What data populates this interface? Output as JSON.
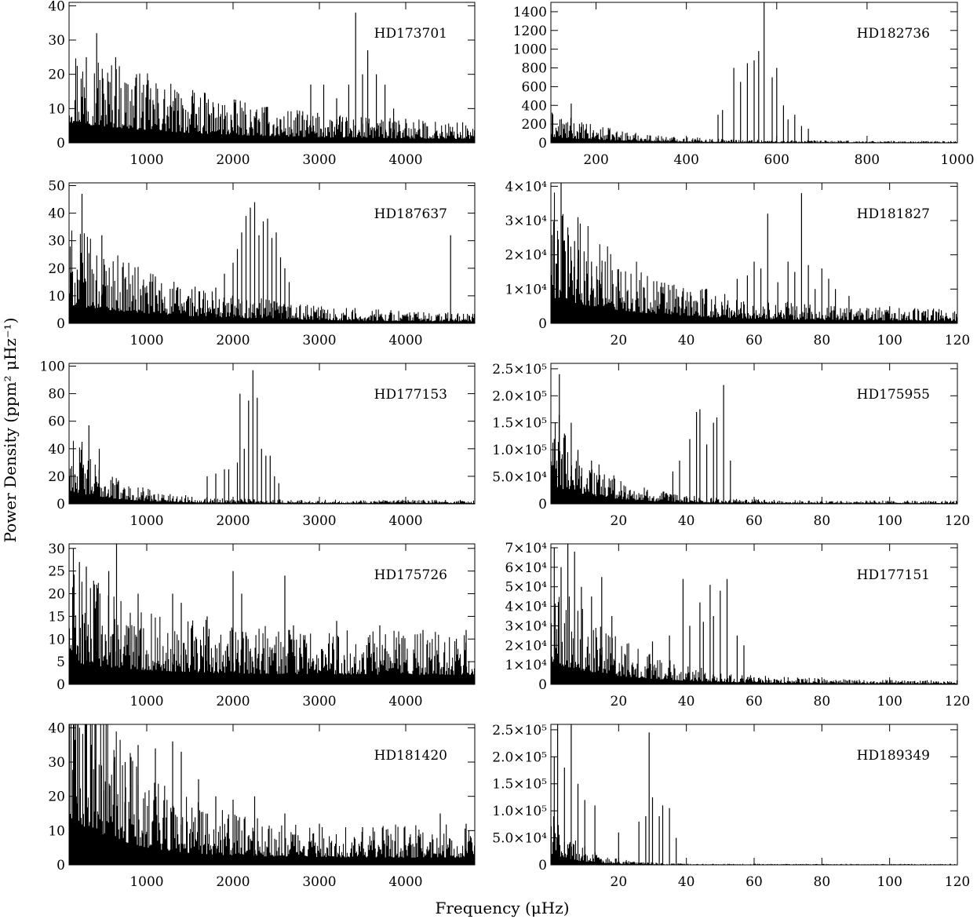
{
  "figure": {
    "ylabel": "Power Density (ppm² μHz⁻¹)",
    "xlabel": "Frequency (μHz)"
  },
  "chart_data": [
    {
      "type": "line",
      "title": "HD173701",
      "xlim": [
        100,
        4800
      ],
      "ylim": [
        0,
        41
      ],
      "xticks": [
        "1000",
        "2000",
        "3000",
        "4000"
      ],
      "yticks": [
        "0",
        "10",
        "20",
        "30",
        "40"
      ],
      "background": {
        "start": 17,
        "end": 2.5,
        "decay": 1500
      },
      "peaks": [
        [
          300,
          25
        ],
        [
          420,
          32
        ],
        [
          640,
          25
        ],
        [
          1400,
          13
        ],
        [
          2800,
          8
        ],
        [
          2900,
          17
        ],
        [
          3050,
          17
        ],
        [
          3200,
          13
        ],
        [
          3340,
          17
        ],
        [
          3420,
          38
        ],
        [
          3500,
          20
        ],
        [
          3560,
          27
        ],
        [
          3660,
          20
        ],
        [
          3760,
          17
        ],
        [
          3860,
          10
        ],
        [
          4000,
          7
        ]
      ]
    },
    {
      "type": "line",
      "title": "HD182736",
      "xlim": [
        100,
        1000
      ],
      "ylim": [
        0,
        1500
      ],
      "xticks": [
        "200",
        "400",
        "600",
        "800",
        "1000"
      ],
      "yticks": [
        "0",
        "200",
        "400",
        "600",
        "800",
        "1000",
        "1200",
        "1400"
      ],
      "background": {
        "start": 180,
        "end": 10,
        "decay": 150
      },
      "peaks": [
        [
          145,
          420
        ],
        [
          470,
          300
        ],
        [
          480,
          350
        ],
        [
          505,
          800
        ],
        [
          520,
          650
        ],
        [
          535,
          850
        ],
        [
          550,
          880
        ],
        [
          560,
          980
        ],
        [
          572,
          1500
        ],
        [
          590,
          700
        ],
        [
          600,
          800
        ],
        [
          615,
          400
        ],
        [
          625,
          250
        ],
        [
          640,
          300
        ],
        [
          655,
          180
        ],
        [
          670,
          150
        ]
      ]
    },
    {
      "type": "line",
      "title": "HD187637",
      "xlim": [
        100,
        4800
      ],
      "ylim": [
        0,
        51
      ],
      "xticks": [
        "1000",
        "2000",
        "3000",
        "4000"
      ],
      "yticks": [
        "0",
        "10",
        "20",
        "30",
        "40",
        "50"
      ],
      "background": {
        "start": 19,
        "end": 1.5,
        "decay": 1300
      },
      "peaks": [
        [
          250,
          47
        ],
        [
          480,
          32
        ],
        [
          1100,
          17
        ],
        [
          1800,
          13
        ],
        [
          1900,
          18
        ],
        [
          2000,
          22
        ],
        [
          2050,
          27
        ],
        [
          2100,
          33
        ],
        [
          2150,
          39
        ],
        [
          2200,
          42
        ],
        [
          2250,
          44
        ],
        [
          2300,
          32
        ],
        [
          2350,
          37
        ],
        [
          2400,
          38
        ],
        [
          2450,
          31
        ],
        [
          2500,
          33
        ],
        [
          2550,
          24
        ],
        [
          2600,
          20
        ],
        [
          2650,
          15
        ],
        [
          4520,
          32
        ]
      ]
    },
    {
      "type": "line",
      "title": "HD181827",
      "xlim": [
        0,
        120
      ],
      "ylim": [
        0,
        41000
      ],
      "xticks": [
        "20",
        "40",
        "60",
        "80",
        "100",
        "120"
      ],
      "yticks": [
        "0",
        "1×10⁴",
        "2×10⁴",
        "3×10⁴",
        "4×10⁴"
      ],
      "background": {
        "start": 22000,
        "end": 2000,
        "decay": 25
      },
      "peaks": [
        [
          1,
          25000
        ],
        [
          3,
          42000
        ],
        [
          5,
          28000
        ],
        [
          7,
          24000
        ],
        [
          8,
          31000
        ],
        [
          12,
          18000
        ],
        [
          15,
          15000
        ],
        [
          20,
          12000
        ],
        [
          55,
          13000
        ],
        [
          58,
          14000
        ],
        [
          60,
          18000
        ],
        [
          62,
          16000
        ],
        [
          64,
          32000
        ],
        [
          67,
          12000
        ],
        [
          70,
          18000
        ],
        [
          72,
          15000
        ],
        [
          74,
          38000
        ],
        [
          76,
          17000
        ],
        [
          78,
          10000
        ],
        [
          80,
          16000
        ],
        [
          82,
          13000
        ],
        [
          84,
          10000
        ],
        [
          88,
          8000
        ],
        [
          100,
          5000
        ]
      ]
    },
    {
      "type": "line",
      "title": "HD177153",
      "xlim": [
        100,
        4800
      ],
      "ylim": [
        0,
        102
      ],
      "xticks": [
        "1000",
        "2000",
        "3000",
        "4000"
      ],
      "yticks": [
        "0",
        "20",
        "40",
        "60",
        "80",
        "100"
      ],
      "background": {
        "start": 28,
        "end": 1.5,
        "decay": 500
      },
      "peaks": [
        [
          250,
          45
        ],
        [
          330,
          57
        ],
        [
          450,
          40
        ],
        [
          1700,
          20
        ],
        [
          1800,
          22
        ],
        [
          1900,
          25
        ],
        [
          1950,
          25
        ],
        [
          2050,
          30
        ],
        [
          2080,
          80
        ],
        [
          2130,
          40
        ],
        [
          2180,
          75
        ],
        [
          2230,
          97
        ],
        [
          2280,
          77
        ],
        [
          2330,
          40
        ],
        [
          2380,
          35
        ],
        [
          2430,
          35
        ],
        [
          2480,
          20
        ],
        [
          2530,
          15
        ]
      ]
    },
    {
      "type": "line",
      "title": "HD175955",
      "xlim": [
        0,
        120
      ],
      "ylim": [
        0,
        260000
      ],
      "xticks": [
        "20",
        "40",
        "60",
        "80",
        "100",
        "120"
      ],
      "yticks": [
        "0",
        "5.0×10⁴",
        "1.0×10⁵",
        "1.5×10⁵",
        "2.0×10⁵",
        "2.5×10⁵"
      ],
      "background": {
        "start": 100000,
        "end": 3000,
        "decay": 14
      },
      "peaks": [
        [
          1,
          120000
        ],
        [
          2.5,
          240000
        ],
        [
          4,
          130000
        ],
        [
          6,
          150000
        ],
        [
          8,
          100000
        ],
        [
          12,
          80000
        ],
        [
          36,
          60000
        ],
        [
          38,
          80000
        ],
        [
          41,
          120000
        ],
        [
          43,
          170000
        ],
        [
          44,
          175000
        ],
        [
          46,
          110000
        ],
        [
          48,
          150000
        ],
        [
          49,
          160000
        ],
        [
          51,
          220000
        ],
        [
          53,
          80000
        ]
      ]
    },
    {
      "type": "line",
      "title": "HD175726",
      "xlim": [
        100,
        4800
      ],
      "ylim": [
        0,
        31
      ],
      "xticks": [
        "1000",
        "2000",
        "3000",
        "4000"
      ],
      "yticks": [
        "0",
        "5",
        "10",
        "15",
        "20",
        "25",
        "30"
      ],
      "background": {
        "start": 14,
        "end": 6,
        "decay": 900
      },
      "peaks": [
        [
          150,
          30
        ],
        [
          220,
          27
        ],
        [
          300,
          26
        ],
        [
          420,
          22
        ],
        [
          560,
          25
        ],
        [
          650,
          31
        ],
        [
          900,
          20
        ],
        [
          1300,
          20
        ],
        [
          1400,
          18
        ],
        [
          1700,
          15
        ],
        [
          2000,
          25
        ],
        [
          2100,
          20
        ],
        [
          2600,
          24
        ],
        [
          2700,
          13
        ],
        [
          3200,
          14
        ],
        [
          3700,
          13
        ],
        [
          4200,
          12
        ],
        [
          4700,
          12
        ]
      ]
    },
    {
      "type": "line",
      "title": "HD177151",
      "xlim": [
        0,
        120
      ],
      "ylim": [
        0,
        72000
      ],
      "xticks": [
        "20",
        "40",
        "60",
        "80",
        "100",
        "120"
      ],
      "yticks": [
        "0",
        "1×10⁴",
        "2×10⁴",
        "3×10⁴",
        "4×10⁴",
        "5×10⁴",
        "6×10⁴",
        "7×10⁴"
      ],
      "background": {
        "start": 32000,
        "end": 1000,
        "decay": 20
      },
      "peaks": [
        [
          1,
          70000
        ],
        [
          3,
          60000
        ],
        [
          5,
          72000
        ],
        [
          7,
          68000
        ],
        [
          9,
          50000
        ],
        [
          12,
          45000
        ],
        [
          15,
          55000
        ],
        [
          18,
          35000
        ],
        [
          30,
          22000
        ],
        [
          35,
          25000
        ],
        [
          39,
          54000
        ],
        [
          41,
          30000
        ],
        [
          44,
          42000
        ],
        [
          45,
          32000
        ],
        [
          47,
          51000
        ],
        [
          48,
          35000
        ],
        [
          50,
          48000
        ],
        [
          52,
          54000
        ],
        [
          55,
          25000
        ],
        [
          57,
          20000
        ]
      ]
    },
    {
      "type": "line",
      "title": "HD181420",
      "xlim": [
        100,
        4800
      ],
      "ylim": [
        0,
        41
      ],
      "xticks": [
        "1000",
        "2000",
        "3000",
        "4000"
      ],
      "yticks": [
        "0",
        "10",
        "20",
        "30",
        "40"
      ],
      "background": {
        "start": 40,
        "end": 6,
        "decay": 650
      },
      "peaks": [
        [
          200,
          41
        ],
        [
          300,
          41
        ],
        [
          400,
          41
        ],
        [
          500,
          41
        ],
        [
          620,
          30
        ],
        [
          750,
          30
        ],
        [
          900,
          35
        ],
        [
          1100,
          34
        ],
        [
          1300,
          36
        ],
        [
          1400,
          33
        ],
        [
          1600,
          25
        ],
        [
          1800,
          20
        ],
        [
          2000,
          19
        ],
        [
          2250,
          20
        ],
        [
          2600,
          15
        ],
        [
          3000,
          12
        ],
        [
          3500,
          11
        ],
        [
          4400,
          15
        ],
        [
          4700,
          12
        ]
      ]
    },
    {
      "type": "line",
      "title": "HD189349",
      "xlim": [
        0,
        120
      ],
      "ylim": [
        0,
        260000
      ],
      "xticks": [
        "20",
        "40",
        "60",
        "80",
        "100",
        "120"
      ],
      "yticks": [
        "0",
        "5.0×10⁴",
        "1.0×10⁵",
        "1.5×10⁵",
        "2.0×10⁵",
        "2.5×10⁵"
      ],
      "background": {
        "start": 60000,
        "end": 1000,
        "decay": 8
      },
      "peaks": [
        [
          1,
          200000
        ],
        [
          2,
          260000
        ],
        [
          4,
          180000
        ],
        [
          6,
          260000
        ],
        [
          8,
          150000
        ],
        [
          10,
          120000
        ],
        [
          13,
          110000
        ],
        [
          20,
          60000
        ],
        [
          26,
          80000
        ],
        [
          28,
          90000
        ],
        [
          29,
          245000
        ],
        [
          30,
          125000
        ],
        [
          32,
          90000
        ],
        [
          33,
          110000
        ],
        [
          35,
          105000
        ],
        [
          37,
          50000
        ]
      ]
    }
  ]
}
